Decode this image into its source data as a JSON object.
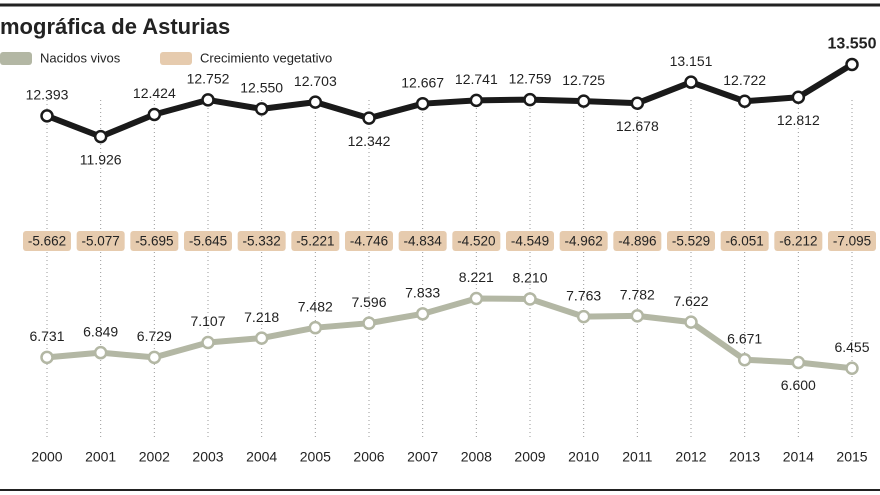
{
  "chart_data": {
    "type": "line",
    "title": "mográfica de Asturias",
    "categories": [
      "2000",
      "2001",
      "2002",
      "2003",
      "2004",
      "2005",
      "2006",
      "2007",
      "2008",
      "2009",
      "2010",
      "2011",
      "2012",
      "2013",
      "2014",
      "2015"
    ],
    "series": [
      {
        "color": "#1a1a1a",
        "ylim": [
          11400,
          14100
        ],
        "values": [
          12393,
          11926,
          12424,
          12752,
          12550,
          12703,
          12342,
          12667,
          12741,
          12759,
          12725,
          12678,
          13151,
          12722,
          12812,
          13550
        ],
        "value_labels": [
          "12.393",
          "11.926",
          "12.424",
          "12.752",
          "12.550",
          "12.703",
          "12.342",
          "12.667",
          "12.741",
          "12.759",
          "12.725",
          "12.678",
          "13.151",
          "12.722",
          "12.812",
          "13.550"
        ]
      },
      {
        "name": "Nacidos vivos",
        "color": "#b3b7a4",
        "ylim": [
          5650,
          9450
        ],
        "values": [
          6731,
          6849,
          6729,
          7107,
          7218,
          7482,
          7596,
          7833,
          8221,
          8210,
          7763,
          7782,
          7622,
          6671,
          6600,
          6455
        ],
        "value_labels": [
          "6.731",
          "6.849",
          "6.729",
          "7.107",
          "7.218",
          "7.482",
          "7.596",
          "7.833",
          "8.221",
          "8.210",
          "7.763",
          "7.782",
          "7.622",
          "6.671",
          "6.600",
          "6.455"
        ]
      },
      {
        "name": "Crecimiento vegetativo",
        "color": "#e6cbae",
        "kind": "box",
        "values": [
          -5662,
          -5077,
          -5695,
          -5645,
          -5332,
          -5221,
          -4746,
          -4834,
          -4520,
          -4549,
          -4962,
          -4896,
          -5529,
          -6051,
          -6212,
          -7095
        ],
        "value_labels": [
          "-5.662",
          "-5.077",
          "-5.695",
          "-5.645",
          "-5.332",
          "-5.221",
          "-4.746",
          "-4.834",
          "-4.520",
          "-4.549",
          "-4.962",
          "-4.896",
          "-5.529",
          "-6.051",
          "-6.212",
          "-7.095"
        ]
      }
    ]
  }
}
